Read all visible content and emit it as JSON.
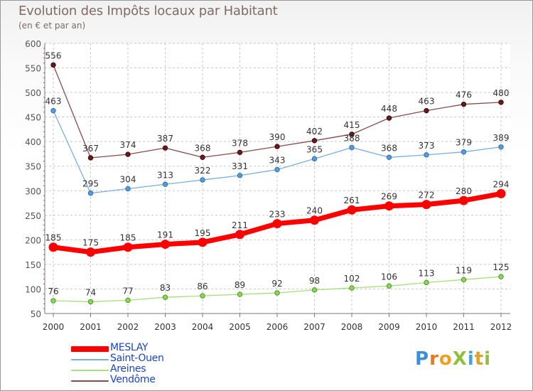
{
  "header": {
    "title": "Evolution des Impôts locaux par Habitant",
    "subtitle": "(en € et par an)"
  },
  "logo": {
    "text": "ProXiti",
    "letters": [
      "P",
      "r",
      "o",
      "X",
      "i",
      "t",
      "i"
    ]
  },
  "chart_data": {
    "type": "line",
    "title": "Evolution des Impôts locaux par Habitant",
    "subtitle": "(en € et par an)",
    "xlabel": "",
    "ylabel": "",
    "categories": [
      "2000",
      "2001",
      "2002",
      "2003",
      "2004",
      "2005",
      "2006",
      "2007",
      "2008",
      "2009",
      "2010",
      "2011",
      "2012"
    ],
    "ylim": [
      50,
      600
    ],
    "yticks": [
      50,
      100,
      150,
      200,
      250,
      300,
      350,
      400,
      450,
      500,
      550,
      600
    ],
    "grid": true,
    "legend_position": "bottom-left",
    "series": [
      {
        "name": "Vendôme",
        "color": "#6b1a1a",
        "values": [
          556,
          367,
          374,
          387,
          368,
          378,
          390,
          402,
          415,
          448,
          463,
          476,
          480
        ]
      },
      {
        "name": "Saint-Ouen",
        "color": "#5b9bd5",
        "values": [
          463,
          295,
          304,
          313,
          322,
          331,
          343,
          365,
          388,
          368,
          373,
          379,
          389
        ]
      },
      {
        "name": "Areines",
        "color": "#8fd45a",
        "values": [
          76,
          74,
          77,
          83,
          86,
          89,
          92,
          98,
          102,
          106,
          113,
          119,
          125
        ]
      },
      {
        "name": "MESLAY",
        "color": "#ff0000",
        "values": [
          185,
          175,
          185,
          191,
          195,
          211,
          233,
          240,
          261,
          269,
          272,
          280,
          294
        ]
      }
    ],
    "legend": [
      "MESLAY",
      "Saint-Ouen",
      "Areines",
      "Vendôme"
    ]
  }
}
